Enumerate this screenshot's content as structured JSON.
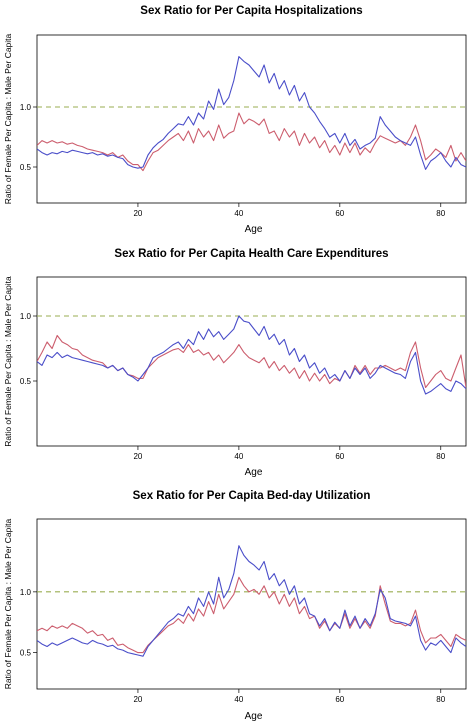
{
  "colors": {
    "female": "#cc5e6e",
    "male": "#4a4ec9",
    "reference": "#9aad52"
  },
  "chart_data": [
    {
      "type": "line",
      "title": "Sex Ratio for Per Capita Hospitalizations",
      "xlabel": "Age",
      "ylabel": "Ratio of Female Per Capita : Male Per Capita",
      "xlim": [
        0,
        85
      ],
      "ylim": [
        0.2,
        1.6
      ],
      "xticks": [
        20,
        40,
        60,
        80
      ],
      "yticks": [
        0.5,
        1.0
      ],
      "ytick_labels": [
        "0.5",
        "1.0"
      ],
      "reference_y": 1.0,
      "x": [
        0,
        1,
        2,
        3,
        4,
        5,
        6,
        7,
        8,
        9,
        10,
        11,
        12,
        13,
        14,
        15,
        16,
        17,
        18,
        19,
        20,
        21,
        22,
        23,
        24,
        25,
        26,
        27,
        28,
        29,
        30,
        31,
        32,
        33,
        34,
        35,
        36,
        37,
        38,
        39,
        40,
        41,
        42,
        43,
        44,
        45,
        46,
        47,
        48,
        49,
        50,
        51,
        52,
        53,
        54,
        55,
        56,
        57,
        58,
        59,
        60,
        61,
        62,
        63,
        64,
        65,
        66,
        67,
        68,
        69,
        70,
        71,
        72,
        73,
        74,
        75,
        76,
        77,
        78,
        79,
        80,
        81,
        82,
        83,
        84,
        85
      ],
      "series": [
        {
          "values": [
            0.65,
            0.62,
            0.6,
            0.62,
            0.61,
            0.63,
            0.62,
            0.64,
            0.63,
            0.62,
            0.61,
            0.62,
            0.6,
            0.61,
            0.59,
            0.6,
            0.58,
            0.57,
            0.52,
            0.5,
            0.49,
            0.5,
            0.6,
            0.66,
            0.7,
            0.73,
            0.78,
            0.82,
            0.86,
            0.85,
            0.92,
            0.85,
            0.95,
            0.9,
            1.05,
            0.98,
            1.15,
            1.02,
            1.08,
            1.22,
            1.42,
            1.38,
            1.35,
            1.3,
            1.25,
            1.35,
            1.2,
            1.28,
            1.15,
            1.22,
            1.1,
            1.18,
            1.05,
            1.12,
            1.0,
            0.95,
            0.88,
            0.82,
            0.75,
            0.78,
            0.7,
            0.78,
            0.68,
            0.73,
            0.65,
            0.68,
            0.7,
            0.74,
            0.92,
            0.85,
            0.8,
            0.75,
            0.72,
            0.7,
            0.68,
            0.75,
            0.6,
            0.48,
            0.55,
            0.58,
            0.62,
            0.55,
            0.5,
            0.58,
            0.52,
            0.5
          ]
        },
        {
          "values": [
            0.68,
            0.72,
            0.7,
            0.72,
            0.7,
            0.71,
            0.69,
            0.7,
            0.68,
            0.67,
            0.65,
            0.64,
            0.63,
            0.62,
            0.6,
            0.62,
            0.58,
            0.6,
            0.55,
            0.52,
            0.52,
            0.47,
            0.55,
            0.62,
            0.64,
            0.68,
            0.72,
            0.75,
            0.78,
            0.72,
            0.8,
            0.7,
            0.82,
            0.75,
            0.8,
            0.72,
            0.85,
            0.74,
            0.78,
            0.8,
            0.95,
            0.86,
            0.9,
            0.88,
            0.85,
            0.9,
            0.78,
            0.8,
            0.72,
            0.82,
            0.75,
            0.8,
            0.68,
            0.78,
            0.7,
            0.75,
            0.66,
            0.72,
            0.62,
            0.68,
            0.6,
            0.7,
            0.62,
            0.7,
            0.6,
            0.66,
            0.62,
            0.7,
            0.76,
            0.74,
            0.72,
            0.7,
            0.72,
            0.68,
            0.75,
            0.85,
            0.72,
            0.56,
            0.6,
            0.65,
            0.62,
            0.58,
            0.68,
            0.55,
            0.62,
            0.55
          ]
        }
      ]
    },
    {
      "type": "line",
      "title": "Sex Ratio for Per Capita Health Care Expenditures",
      "xlabel": "Age",
      "ylabel": "Ratio of Female Per Capita : Male Per Capita",
      "xlim": [
        0,
        85
      ],
      "ylim": [
        0.0,
        1.3
      ],
      "xticks": [
        20,
        40,
        60,
        80
      ],
      "yticks": [
        0.5,
        1.0
      ],
      "ytick_labels": [
        "0.5",
        "1.0"
      ],
      "reference_y": 1.0,
      "x": [
        0,
        1,
        2,
        3,
        4,
        5,
        6,
        7,
        8,
        9,
        10,
        11,
        12,
        13,
        14,
        15,
        16,
        17,
        18,
        19,
        20,
        21,
        22,
        23,
        24,
        25,
        26,
        27,
        28,
        29,
        30,
        31,
        32,
        33,
        34,
        35,
        36,
        37,
        38,
        39,
        40,
        41,
        42,
        43,
        44,
        45,
        46,
        47,
        48,
        49,
        50,
        51,
        52,
        53,
        54,
        55,
        56,
        57,
        58,
        59,
        60,
        61,
        62,
        63,
        64,
        65,
        66,
        67,
        68,
        69,
        70,
        71,
        72,
        73,
        74,
        75,
        76,
        77,
        78,
        79,
        80,
        81,
        82,
        83,
        84,
        85
      ],
      "series": [
        {
          "values": [
            0.65,
            0.62,
            0.7,
            0.68,
            0.72,
            0.68,
            0.7,
            0.68,
            0.67,
            0.66,
            0.65,
            0.64,
            0.63,
            0.62,
            0.6,
            0.62,
            0.58,
            0.6,
            0.55,
            0.53,
            0.5,
            0.55,
            0.6,
            0.68,
            0.7,
            0.72,
            0.75,
            0.78,
            0.8,
            0.75,
            0.82,
            0.78,
            0.88,
            0.82,
            0.9,
            0.84,
            0.88,
            0.82,
            0.86,
            0.9,
            1.0,
            0.96,
            0.95,
            0.9,
            0.85,
            0.92,
            0.82,
            0.86,
            0.78,
            0.82,
            0.7,
            0.75,
            0.65,
            0.7,
            0.6,
            0.64,
            0.56,
            0.6,
            0.52,
            0.55,
            0.5,
            0.58,
            0.52,
            0.6,
            0.55,
            0.6,
            0.52,
            0.56,
            0.62,
            0.6,
            0.58,
            0.56,
            0.55,
            0.52,
            0.65,
            0.72,
            0.5,
            0.4,
            0.42,
            0.45,
            0.48,
            0.44,
            0.42,
            0.5,
            0.48,
            0.44
          ]
        },
        {
          "values": [
            0.65,
            0.72,
            0.8,
            0.75,
            0.85,
            0.8,
            0.78,
            0.75,
            0.74,
            0.7,
            0.68,
            0.66,
            0.65,
            0.64,
            0.6,
            0.62,
            0.58,
            0.6,
            0.55,
            0.54,
            0.52,
            0.52,
            0.6,
            0.64,
            0.68,
            0.7,
            0.72,
            0.74,
            0.75,
            0.72,
            0.78,
            0.72,
            0.74,
            0.7,
            0.72,
            0.66,
            0.7,
            0.64,
            0.68,
            0.72,
            0.78,
            0.72,
            0.68,
            0.66,
            0.64,
            0.68,
            0.6,
            0.65,
            0.58,
            0.62,
            0.56,
            0.6,
            0.52,
            0.58,
            0.5,
            0.56,
            0.5,
            0.55,
            0.48,
            0.52,
            0.5,
            0.58,
            0.52,
            0.62,
            0.56,
            0.62,
            0.55,
            0.6,
            0.6,
            0.62,
            0.6,
            0.58,
            0.6,
            0.58,
            0.72,
            0.8,
            0.6,
            0.45,
            0.5,
            0.55,
            0.58,
            0.52,
            0.5,
            0.6,
            0.7,
            0.45
          ]
        }
      ]
    },
    {
      "type": "line",
      "title": "Sex Ratio for Per Capita Bed-day Utilization",
      "xlabel": "Age",
      "ylabel": "Ratio of Female Per Capita : Male Per Capita",
      "xlim": [
        0,
        85
      ],
      "ylim": [
        0.2,
        1.6
      ],
      "xticks": [
        20,
        40,
        60,
        80
      ],
      "yticks": [
        0.5,
        1.0
      ],
      "ytick_labels": [
        "0.5",
        "1.0"
      ],
      "reference_y": 1.0,
      "x": [
        0,
        1,
        2,
        3,
        4,
        5,
        6,
        7,
        8,
        9,
        10,
        11,
        12,
        13,
        14,
        15,
        16,
        17,
        18,
        19,
        20,
        21,
        22,
        23,
        24,
        25,
        26,
        27,
        28,
        29,
        30,
        31,
        32,
        33,
        34,
        35,
        36,
        37,
        38,
        39,
        40,
        41,
        42,
        43,
        44,
        45,
        46,
        47,
        48,
        49,
        50,
        51,
        52,
        53,
        54,
        55,
        56,
        57,
        58,
        59,
        60,
        61,
        62,
        63,
        64,
        65,
        66,
        67,
        68,
        69,
        70,
        71,
        72,
        73,
        74,
        75,
        76,
        77,
        78,
        79,
        80,
        81,
        82,
        83,
        84,
        85
      ],
      "series": [
        {
          "values": [
            0.6,
            0.57,
            0.55,
            0.58,
            0.56,
            0.58,
            0.6,
            0.62,
            0.6,
            0.58,
            0.57,
            0.6,
            0.58,
            0.57,
            0.55,
            0.56,
            0.53,
            0.52,
            0.5,
            0.49,
            0.48,
            0.47,
            0.55,
            0.6,
            0.65,
            0.7,
            0.75,
            0.78,
            0.82,
            0.8,
            0.88,
            0.82,
            0.95,
            0.88,
            1.0,
            0.9,
            1.12,
            0.95,
            1.02,
            1.15,
            1.38,
            1.3,
            1.25,
            1.22,
            1.18,
            1.25,
            1.1,
            1.15,
            1.05,
            1.1,
            0.98,
            1.05,
            0.9,
            0.95,
            0.82,
            0.8,
            0.72,
            0.78,
            0.68,
            0.75,
            0.7,
            0.85,
            0.72,
            0.8,
            0.7,
            0.78,
            0.72,
            0.82,
            1.02,
            0.95,
            0.78,
            0.76,
            0.75,
            0.74,
            0.72,
            0.8,
            0.6,
            0.52,
            0.58,
            0.56,
            0.6,
            0.55,
            0.5,
            0.62,
            0.58,
            0.55
          ]
        },
        {
          "values": [
            0.68,
            0.7,
            0.68,
            0.72,
            0.7,
            0.72,
            0.7,
            0.74,
            0.72,
            0.7,
            0.66,
            0.68,
            0.64,
            0.65,
            0.6,
            0.62,
            0.56,
            0.57,
            0.54,
            0.52,
            0.5,
            0.5,
            0.56,
            0.6,
            0.64,
            0.68,
            0.72,
            0.74,
            0.78,
            0.74,
            0.82,
            0.76,
            0.86,
            0.8,
            0.92,
            0.82,
            0.98,
            0.86,
            0.92,
            0.98,
            1.12,
            1.05,
            1.0,
            1.02,
            0.98,
            1.05,
            0.95,
            1.0,
            0.9,
            0.98,
            0.88,
            0.95,
            0.82,
            0.88,
            0.78,
            0.8,
            0.7,
            0.76,
            0.68,
            0.74,
            0.7,
            0.82,
            0.7,
            0.78,
            0.7,
            0.76,
            0.7,
            0.8,
            1.05,
            0.9,
            0.76,
            0.74,
            0.74,
            0.72,
            0.74,
            0.85,
            0.68,
            0.58,
            0.62,
            0.62,
            0.65,
            0.6,
            0.55,
            0.65,
            0.62,
            0.6
          ]
        }
      ]
    }
  ]
}
